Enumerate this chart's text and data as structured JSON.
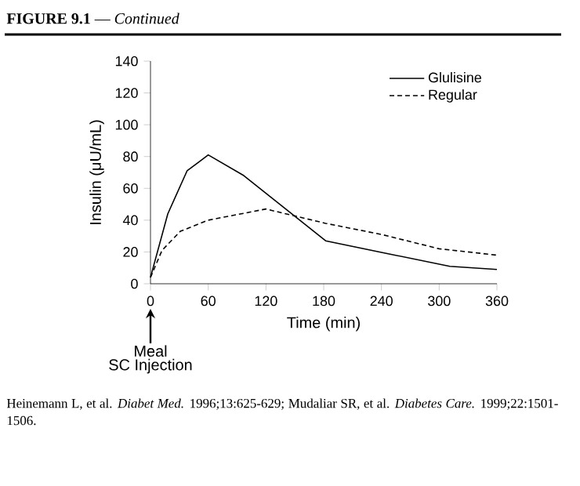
{
  "chart_data": {
    "type": "line",
    "title": "**FIGURE 9.1** — *Continued*",
    "xlabel": "Time (min)",
    "ylabel": "Insulin (μU/mL)",
    "xlim": [
      0,
      360
    ],
    "ylim": [
      0,
      140
    ],
    "xticks": [
      0,
      60,
      120,
      180,
      240,
      300,
      360
    ],
    "yticks": [
      0,
      20,
      40,
      60,
      80,
      100,
      120,
      140
    ],
    "legend": "top right",
    "grid": false,
    "marker": "none",
    "series": [
      {
        "name": "Glulisine",
        "color": "#000000",
        "line_style": "solid",
        "x": [
          0,
          18,
          38,
          60,
          97,
          182,
          246,
          311,
          360
        ],
        "values": [
          4,
          44,
          71,
          81,
          68,
          27,
          19,
          11,
          9
        ]
      },
      {
        "name": "Regular",
        "color": "#000000",
        "line_style": "dashed",
        "x": [
          0,
          12,
          31,
          60,
          120,
          182,
          240,
          300,
          360
        ],
        "values": [
          4,
          21,
          33,
          40,
          47,
          38,
          31,
          22,
          18
        ]
      }
    ],
    "annotations": [
      "Meal",
      "SC Injection",
      "Heinemann L, et al. *Diabet Med.* 1996;13:625-629; Mudaliar SR, et al. *Diabetes Care.* 1999;22:1501-1506."
    ]
  }
}
